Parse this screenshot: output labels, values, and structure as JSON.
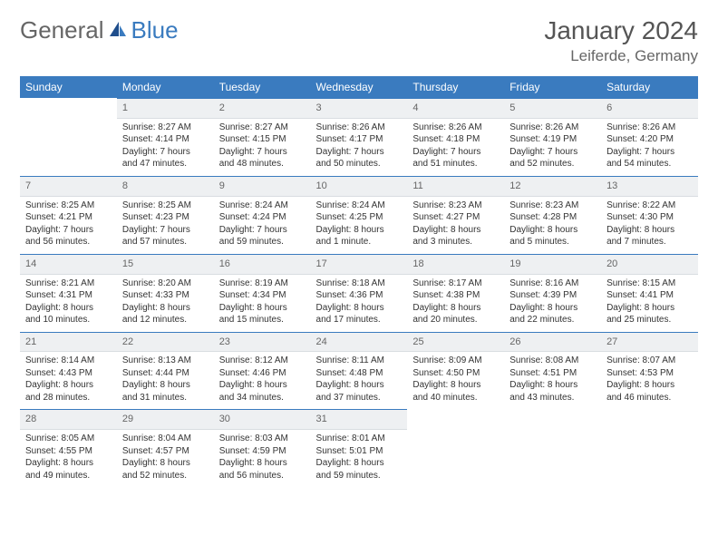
{
  "logo": {
    "part1": "General",
    "part2": "Blue"
  },
  "title": "January 2024",
  "location": "Leiferde, Germany",
  "colors": {
    "accent": "#3a7bbf",
    "header_bg": "#eef0f2",
    "text": "#333333"
  },
  "weekdays": [
    "Sunday",
    "Monday",
    "Tuesday",
    "Wednesday",
    "Thursday",
    "Friday",
    "Saturday"
  ],
  "weeks": [
    [
      null,
      {
        "n": "1",
        "sr": "Sunrise: 8:27 AM",
        "ss": "Sunset: 4:14 PM",
        "d1": "Daylight: 7 hours",
        "d2": "and 47 minutes."
      },
      {
        "n": "2",
        "sr": "Sunrise: 8:27 AM",
        "ss": "Sunset: 4:15 PM",
        "d1": "Daylight: 7 hours",
        "d2": "and 48 minutes."
      },
      {
        "n": "3",
        "sr": "Sunrise: 8:26 AM",
        "ss": "Sunset: 4:17 PM",
        "d1": "Daylight: 7 hours",
        "d2": "and 50 minutes."
      },
      {
        "n": "4",
        "sr": "Sunrise: 8:26 AM",
        "ss": "Sunset: 4:18 PM",
        "d1": "Daylight: 7 hours",
        "d2": "and 51 minutes."
      },
      {
        "n": "5",
        "sr": "Sunrise: 8:26 AM",
        "ss": "Sunset: 4:19 PM",
        "d1": "Daylight: 7 hours",
        "d2": "and 52 minutes."
      },
      {
        "n": "6",
        "sr": "Sunrise: 8:26 AM",
        "ss": "Sunset: 4:20 PM",
        "d1": "Daylight: 7 hours",
        "d2": "and 54 minutes."
      }
    ],
    [
      {
        "n": "7",
        "sr": "Sunrise: 8:25 AM",
        "ss": "Sunset: 4:21 PM",
        "d1": "Daylight: 7 hours",
        "d2": "and 56 minutes."
      },
      {
        "n": "8",
        "sr": "Sunrise: 8:25 AM",
        "ss": "Sunset: 4:23 PM",
        "d1": "Daylight: 7 hours",
        "d2": "and 57 minutes."
      },
      {
        "n": "9",
        "sr": "Sunrise: 8:24 AM",
        "ss": "Sunset: 4:24 PM",
        "d1": "Daylight: 7 hours",
        "d2": "and 59 minutes."
      },
      {
        "n": "10",
        "sr": "Sunrise: 8:24 AM",
        "ss": "Sunset: 4:25 PM",
        "d1": "Daylight: 8 hours",
        "d2": "and 1 minute."
      },
      {
        "n": "11",
        "sr": "Sunrise: 8:23 AM",
        "ss": "Sunset: 4:27 PM",
        "d1": "Daylight: 8 hours",
        "d2": "and 3 minutes."
      },
      {
        "n": "12",
        "sr": "Sunrise: 8:23 AM",
        "ss": "Sunset: 4:28 PM",
        "d1": "Daylight: 8 hours",
        "d2": "and 5 minutes."
      },
      {
        "n": "13",
        "sr": "Sunrise: 8:22 AM",
        "ss": "Sunset: 4:30 PM",
        "d1": "Daylight: 8 hours",
        "d2": "and 7 minutes."
      }
    ],
    [
      {
        "n": "14",
        "sr": "Sunrise: 8:21 AM",
        "ss": "Sunset: 4:31 PM",
        "d1": "Daylight: 8 hours",
        "d2": "and 10 minutes."
      },
      {
        "n": "15",
        "sr": "Sunrise: 8:20 AM",
        "ss": "Sunset: 4:33 PM",
        "d1": "Daylight: 8 hours",
        "d2": "and 12 minutes."
      },
      {
        "n": "16",
        "sr": "Sunrise: 8:19 AM",
        "ss": "Sunset: 4:34 PM",
        "d1": "Daylight: 8 hours",
        "d2": "and 15 minutes."
      },
      {
        "n": "17",
        "sr": "Sunrise: 8:18 AM",
        "ss": "Sunset: 4:36 PM",
        "d1": "Daylight: 8 hours",
        "d2": "and 17 minutes."
      },
      {
        "n": "18",
        "sr": "Sunrise: 8:17 AM",
        "ss": "Sunset: 4:38 PM",
        "d1": "Daylight: 8 hours",
        "d2": "and 20 minutes."
      },
      {
        "n": "19",
        "sr": "Sunrise: 8:16 AM",
        "ss": "Sunset: 4:39 PM",
        "d1": "Daylight: 8 hours",
        "d2": "and 22 minutes."
      },
      {
        "n": "20",
        "sr": "Sunrise: 8:15 AM",
        "ss": "Sunset: 4:41 PM",
        "d1": "Daylight: 8 hours",
        "d2": "and 25 minutes."
      }
    ],
    [
      {
        "n": "21",
        "sr": "Sunrise: 8:14 AM",
        "ss": "Sunset: 4:43 PM",
        "d1": "Daylight: 8 hours",
        "d2": "and 28 minutes."
      },
      {
        "n": "22",
        "sr": "Sunrise: 8:13 AM",
        "ss": "Sunset: 4:44 PM",
        "d1": "Daylight: 8 hours",
        "d2": "and 31 minutes."
      },
      {
        "n": "23",
        "sr": "Sunrise: 8:12 AM",
        "ss": "Sunset: 4:46 PM",
        "d1": "Daylight: 8 hours",
        "d2": "and 34 minutes."
      },
      {
        "n": "24",
        "sr": "Sunrise: 8:11 AM",
        "ss": "Sunset: 4:48 PM",
        "d1": "Daylight: 8 hours",
        "d2": "and 37 minutes."
      },
      {
        "n": "25",
        "sr": "Sunrise: 8:09 AM",
        "ss": "Sunset: 4:50 PM",
        "d1": "Daylight: 8 hours",
        "d2": "and 40 minutes."
      },
      {
        "n": "26",
        "sr": "Sunrise: 8:08 AM",
        "ss": "Sunset: 4:51 PM",
        "d1": "Daylight: 8 hours",
        "d2": "and 43 minutes."
      },
      {
        "n": "27",
        "sr": "Sunrise: 8:07 AM",
        "ss": "Sunset: 4:53 PM",
        "d1": "Daylight: 8 hours",
        "d2": "and 46 minutes."
      }
    ],
    [
      {
        "n": "28",
        "sr": "Sunrise: 8:05 AM",
        "ss": "Sunset: 4:55 PM",
        "d1": "Daylight: 8 hours",
        "d2": "and 49 minutes."
      },
      {
        "n": "29",
        "sr": "Sunrise: 8:04 AM",
        "ss": "Sunset: 4:57 PM",
        "d1": "Daylight: 8 hours",
        "d2": "and 52 minutes."
      },
      {
        "n": "30",
        "sr": "Sunrise: 8:03 AM",
        "ss": "Sunset: 4:59 PM",
        "d1": "Daylight: 8 hours",
        "d2": "and 56 minutes."
      },
      {
        "n": "31",
        "sr": "Sunrise: 8:01 AM",
        "ss": "Sunset: 5:01 PM",
        "d1": "Daylight: 8 hours",
        "d2": "and 59 minutes."
      },
      null,
      null,
      null
    ]
  ]
}
